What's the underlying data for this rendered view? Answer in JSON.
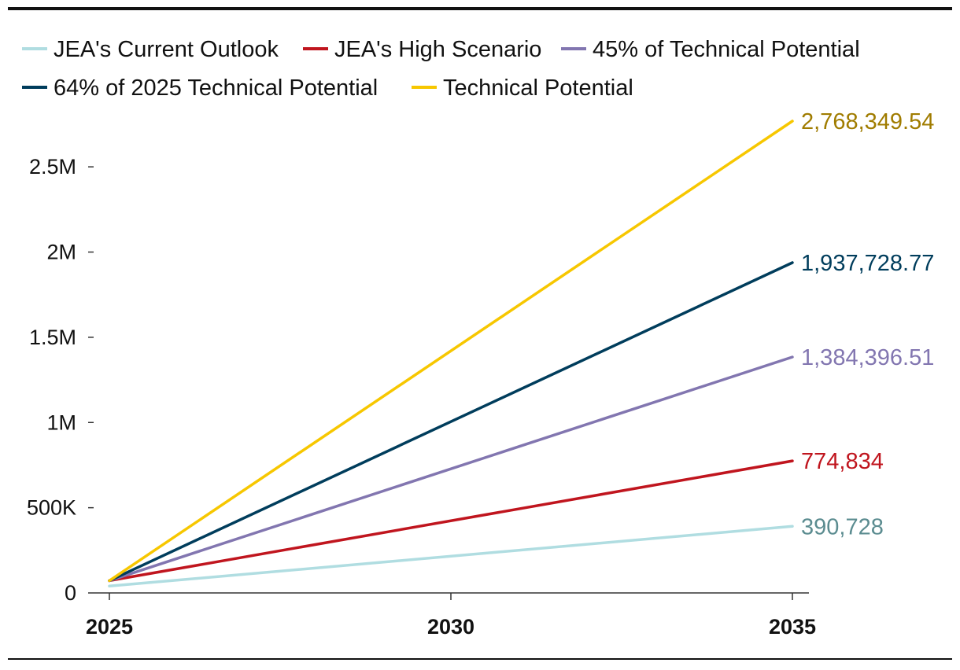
{
  "chart_data": {
    "type": "line",
    "title": "",
    "xlabel": "",
    "ylabel": "",
    "x": [
      2025,
      2035
    ],
    "x_tick_labels": [
      "2025",
      "2030",
      "2035"
    ],
    "x_tick_values": [
      2025,
      2030,
      2035
    ],
    "y_tick_labels": [
      "0",
      "500K",
      "1M",
      "1.5M",
      "2M",
      "2.5M"
    ],
    "y_tick_values": [
      0,
      500000,
      1000000,
      1500000,
      2000000,
      2500000
    ],
    "ylim": [
      0,
      2768349.54
    ],
    "xlim": [
      2025,
      2035
    ],
    "legend_position": "top",
    "series": [
      {
        "name": "JEA's Current Outlook",
        "values": [
          40000,
          390728
        ],
        "end_label": "390,728",
        "color": "#B0DDE1",
        "label_color": "#5B8C90"
      },
      {
        "name": "JEA's High Scenario",
        "values": [
          72000,
          774834
        ],
        "end_label": "774,834",
        "color": "#C0151E",
        "label_color": "#C0151E"
      },
      {
        "name": "45% of Technical Potential",
        "values": [
          72000,
          1384396.51
        ],
        "end_label": "1,384,396.51",
        "color": "#8276B0",
        "label_color": "#8276B0"
      },
      {
        "name": "64% of 2025 Technical Potential",
        "values": [
          72000,
          1937728.77
        ],
        "end_label": "1,937,728.77",
        "color": "#003D5C",
        "label_color": "#003D5C"
      },
      {
        "name": "Technical Potential",
        "values": [
          72000,
          2768349.54
        ],
        "end_label": "2,768,349.54",
        "color": "#F7C700",
        "label_color": "#A07C00"
      }
    ]
  }
}
